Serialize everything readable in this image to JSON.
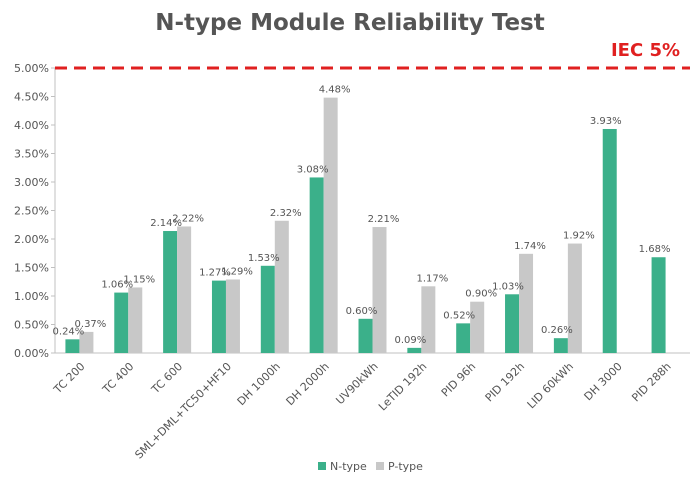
{
  "colors": {
    "n_type": "#3bb08a",
    "p_type": "#c8c8c8",
    "limit": "#e02020",
    "text": "#555555",
    "axis": "#c0c0c0"
  },
  "chart_data": {
    "type": "bar",
    "title": "N-type Module Reliability Test",
    "categories": [
      "TC 200",
      "TC 400",
      "TC 600",
      "SML+DML+TC50+HF10",
      "DH 1000h",
      "DH 2000h",
      "UV90kWh",
      "LeTID 192h",
      "PID 96h",
      "PID 192h",
      "LID 60kWh",
      "DH 3000",
      "PID 288h"
    ],
    "series": [
      {
        "name": "N-type",
        "values": [
          0.24,
          1.06,
          2.14,
          1.27,
          1.53,
          3.08,
          0.6,
          0.09,
          0.52,
          1.03,
          0.26,
          3.93,
          1.68
        ],
        "labels": [
          "0.24%",
          "1.06%",
          "2.14%",
          "1.27%",
          "1.53%",
          "3.08%",
          "0.60%",
          "0.09%",
          "0.52%",
          "1.03%",
          "0.26%",
          "3.93%",
          "1.68%"
        ]
      },
      {
        "name": "P-type",
        "values": [
          0.37,
          1.15,
          2.22,
          1.29,
          2.32,
          4.48,
          2.21,
          1.17,
          0.9,
          1.74,
          1.92,
          null,
          null
        ],
        "labels": [
          "0.37%",
          "1.15%",
          "2.22%",
          "1.29%",
          "2.32%",
          "4.48%",
          "2.21%",
          "1.17%",
          "0.90%",
          "1.74%",
          "1.92%",
          null,
          null
        ]
      }
    ],
    "yticks": [
      "0.00%",
      "0.50%",
      "1.00%",
      "1.50%",
      "2.00%",
      "2.50%",
      "3.00%",
      "3.50%",
      "4.00%",
      "4.50%",
      "5.00%"
    ],
    "ylim": [
      0,
      5
    ],
    "limit_line": {
      "value": 5,
      "label": "IEC 5%"
    },
    "legend": {
      "position": "bottom",
      "entries": [
        "N-type",
        "P-type"
      ]
    },
    "grid": false
  }
}
